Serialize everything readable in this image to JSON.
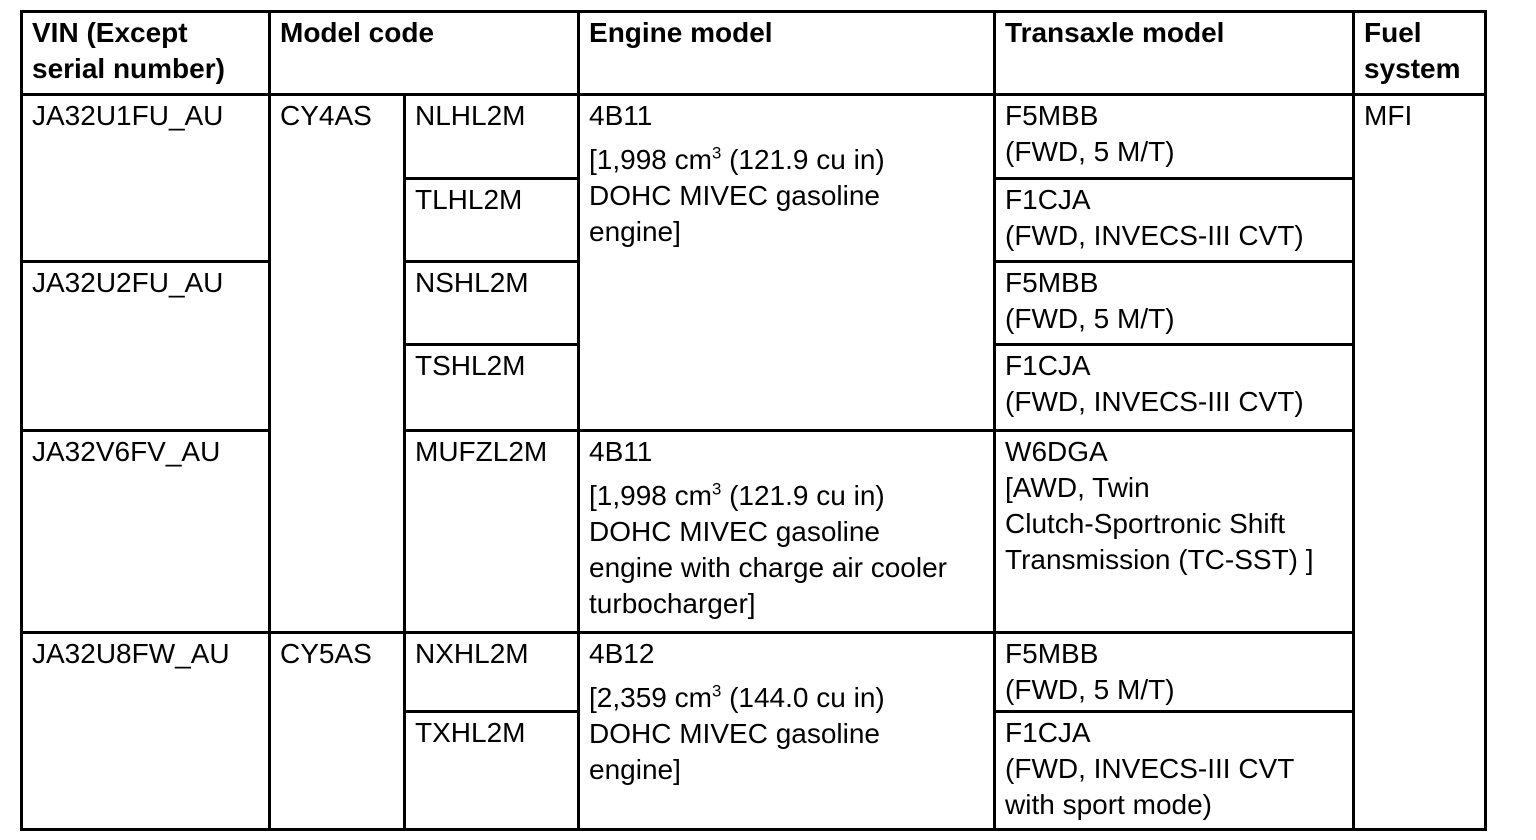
{
  "headers": {
    "vin_lines": [
      "VIN (Except",
      "serial number)"
    ],
    "model_code": "Model code",
    "engine_model": "Engine model",
    "transaxle_model": "Transaxle model",
    "fuel_lines": [
      "Fuel",
      "system"
    ]
  },
  "vins": [
    "JA32U1FU_AU",
    "JA32U2FU_AU",
    "JA32V6FV_AU",
    "JA32U8FW_AU"
  ],
  "model_codes_main": [
    "CY4AS",
    "CY5AS"
  ],
  "model_codes_sub": [
    "NLHL2M",
    "TLHL2M",
    "NSHL2M",
    "TSHL2M",
    "MUFZL2M",
    "NXHL2M",
    "TXHL2M"
  ],
  "engines": [
    {
      "model": "4B11",
      "displacement": {
        "pre": "[1,998 cm",
        "sup": "3",
        "post": " (121.9 cu in)"
      },
      "desc_lines": [
        "DOHC MIVEC gasoline",
        "engine]"
      ]
    },
    {
      "model": "4B11",
      "displacement": {
        "pre": "[1,998 cm",
        "sup": "3",
        "post": " (121.9 cu in)"
      },
      "desc_lines": [
        "DOHC MIVEC gasoline",
        "engine with charge air cooler",
        "turbocharger]"
      ]
    },
    {
      "model": "4B12",
      "displacement": {
        "pre": "[2,359 cm",
        "sup": "3",
        "post": " (144.0 cu in)"
      },
      "desc_lines": [
        "DOHC MIVEC gasoline",
        "engine]"
      ]
    }
  ],
  "transaxles": [
    {
      "model": "F5MBB",
      "desc_lines": [
        "(FWD, 5 M/T)"
      ]
    },
    {
      "model": "F1CJA",
      "desc_lines": [
        "(FWD, INVECS-III CVT)"
      ]
    },
    {
      "model": "F5MBB",
      "desc_lines": [
        "(FWD, 5 M/T)"
      ]
    },
    {
      "model": "F1CJA",
      "desc_lines": [
        "(FWD, INVECS-III CVT)"
      ]
    },
    {
      "model": "W6DGA",
      "desc_lines": [
        "[AWD, Twin",
        "Clutch-Sportronic Shift",
        "Transmission (TC-SST) ]"
      ]
    },
    {
      "model": "F5MBB",
      "desc_lines": [
        "(FWD, 5 M/T)"
      ]
    },
    {
      "model": "F1CJA",
      "desc_lines": [
        "(FWD, INVECS-III CVT",
        "with sport mode)"
      ]
    }
  ],
  "fuel_system": "MFI",
  "colors": {
    "border": "#000000",
    "text": "#000000",
    "background": "#ffffff"
  }
}
